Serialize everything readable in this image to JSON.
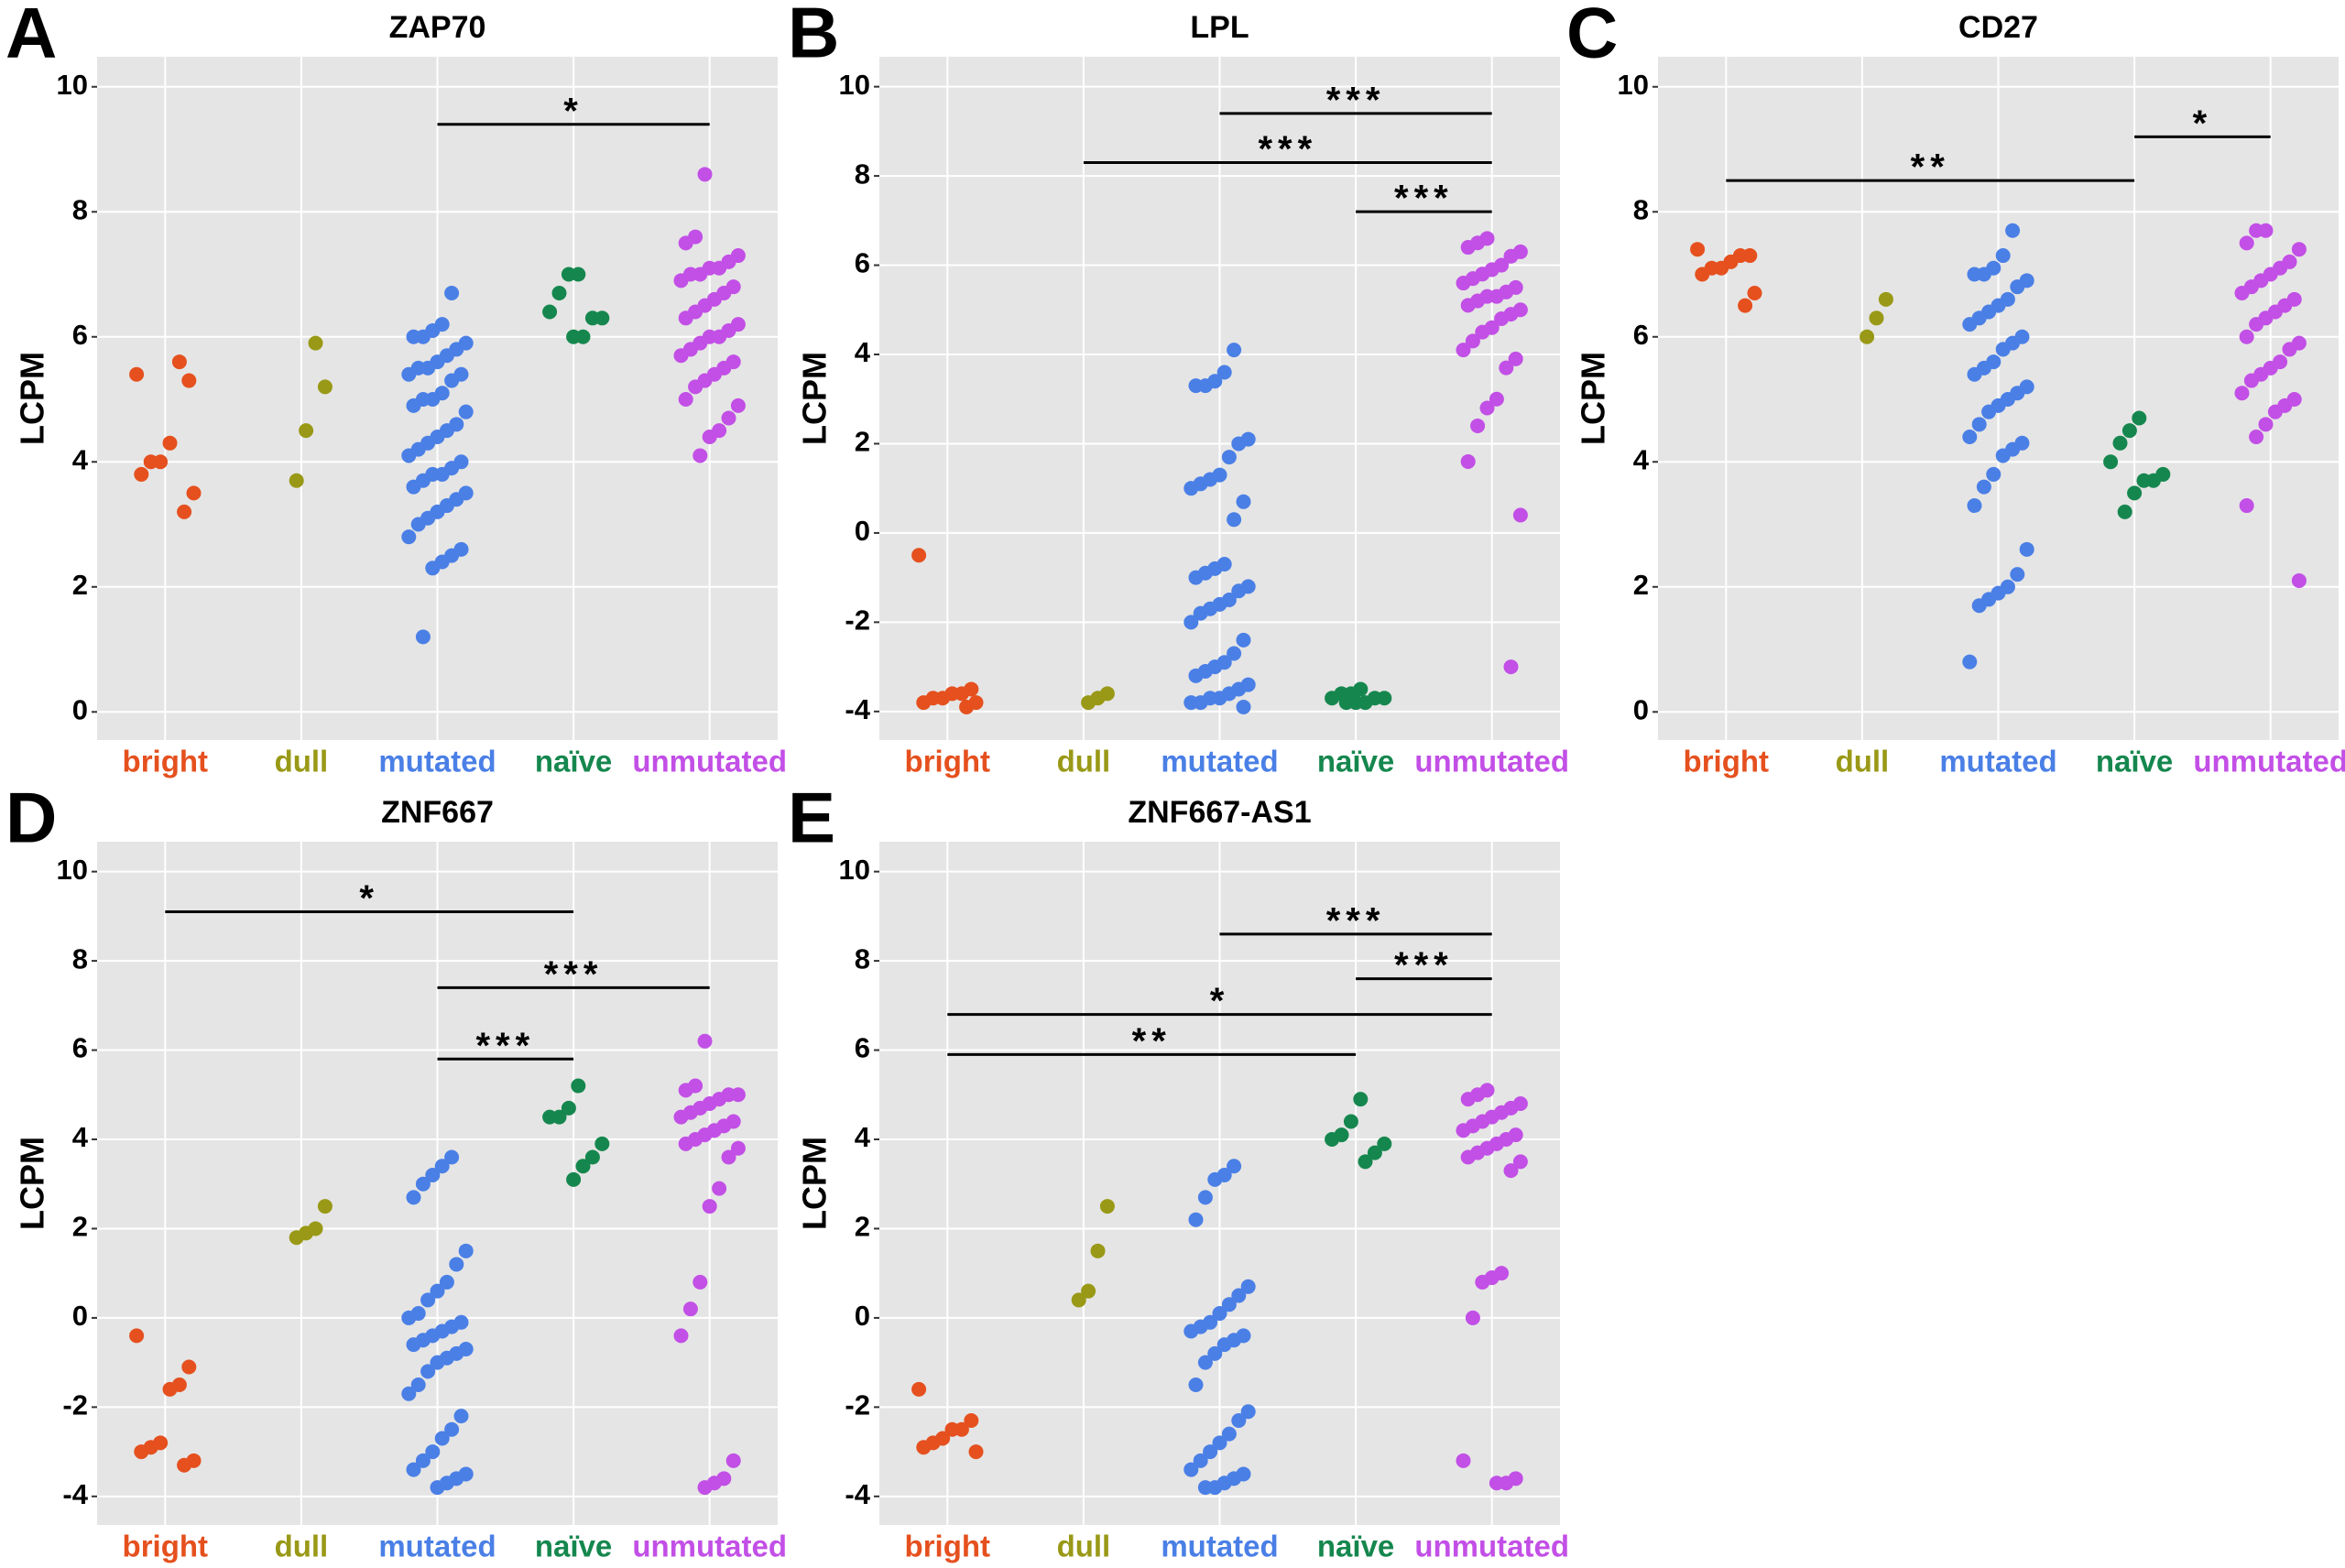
{
  "chart_data": [
    {
      "type": "strip",
      "panel": "A",
      "title": "ZAP70",
      "ylabel": "LCPM",
      "ylim": [
        -0.45,
        10.48
      ],
      "yticks": [
        0,
        2,
        4,
        6,
        8,
        10
      ],
      "grid": true,
      "series": [
        {
          "name": "bright",
          "color": "#e5501e",
          "values": [
            5.4,
            5.3,
            5.6,
            4.3,
            4.0,
            4.0,
            3.8,
            3.5,
            3.2
          ]
        },
        {
          "name": "dull",
          "color": "#999917",
          "values": [
            5.2,
            5.9,
            4.5,
            3.7
          ]
        },
        {
          "name": "mutated",
          "color": "#4a7fe6",
          "values": [
            6.7,
            6.2,
            6.1,
            6.0,
            6.0,
            5.9,
            5.8,
            5.7,
            5.6,
            5.5,
            5.5,
            5.4,
            5.4,
            5.3,
            5.1,
            5.0,
            5.0,
            4.9,
            4.8,
            4.6,
            4.5,
            4.4,
            4.3,
            4.2,
            4.1,
            4.0,
            3.9,
            3.8,
            3.8,
            3.7,
            3.6,
            3.5,
            3.4,
            3.3,
            3.2,
            3.1,
            3.0,
            2.8,
            2.6,
            2.5,
            2.4,
            2.3,
            1.2
          ]
        },
        {
          "name": "naïve",
          "color": "#15874e",
          "values": [
            7.0,
            7.0,
            6.7,
            6.4,
            6.3,
            6.3,
            6.0,
            6.0
          ]
        },
        {
          "name": "unmutated",
          "color": "#c24fe6",
          "values": [
            8.6,
            7.6,
            7.5,
            7.3,
            7.2,
            7.1,
            7.1,
            7.0,
            7.0,
            6.9,
            6.8,
            6.7,
            6.6,
            6.5,
            6.4,
            6.3,
            6.2,
            6.1,
            6.0,
            6.0,
            5.9,
            5.8,
            5.7,
            5.6,
            5.5,
            5.4,
            5.3,
            5.2,
            5.0,
            4.9,
            4.7,
            4.5,
            4.4,
            4.1
          ]
        }
      ],
      "annotations": [
        {
          "from": "mutated",
          "to": "unmutated",
          "y": 9.4,
          "label": "*"
        }
      ]
    },
    {
      "type": "strip",
      "panel": "B",
      "title": "LPL",
      "ylabel": "LCPM",
      "ylim": [
        -4.64,
        10.67
      ],
      "yticks": [
        -4,
        -2,
        0,
        2,
        4,
        6,
        8,
        10
      ],
      "grid": true,
      "series": [
        {
          "name": "bright",
          "color": "#e5501e",
          "values": [
            -0.5,
            -3.5,
            -3.6,
            -3.6,
            -3.7,
            -3.7,
            -3.8,
            -3.8,
            -3.9
          ]
        },
        {
          "name": "dull",
          "color": "#999917",
          "values": [
            -3.6,
            -3.7,
            -3.8
          ]
        },
        {
          "name": "mutated",
          "color": "#4a7fe6",
          "values": [
            4.1,
            3.6,
            3.4,
            3.3,
            3.3,
            2.1,
            2.0,
            1.7,
            1.3,
            1.2,
            1.1,
            1.0,
            0.7,
            0.3,
            -0.7,
            -0.8,
            -0.9,
            -1.0,
            -1.2,
            -1.3,
            -1.5,
            -1.6,
            -1.7,
            -1.8,
            -2.0,
            -2.4,
            -2.7,
            -2.9,
            -3.0,
            -3.1,
            -3.2,
            -3.4,
            -3.5,
            -3.6,
            -3.7,
            -3.7,
            -3.8,
            -3.8,
            -3.9
          ]
        },
        {
          "name": "naïve",
          "color": "#15874e",
          "values": [
            -3.5,
            -3.6,
            -3.6,
            -3.7,
            -3.7,
            -3.7,
            -3.8,
            -3.8,
            -3.8
          ]
        },
        {
          "name": "unmutated",
          "color": "#c24fe6",
          "values": [
            6.6,
            6.5,
            6.4,
            6.3,
            6.2,
            6.0,
            5.9,
            5.8,
            5.7,
            5.6,
            5.5,
            5.4,
            5.3,
            5.3,
            5.2,
            5.1,
            5.0,
            4.9,
            4.8,
            4.6,
            4.5,
            4.3,
            4.1,
            3.9,
            3.7,
            3.0,
            2.8,
            2.4,
            1.6,
            0.4,
            -3.0
          ]
        }
      ],
      "annotations": [
        {
          "from": "mutated",
          "to": "unmutated",
          "y": 9.4,
          "label": "***"
        },
        {
          "from": "dull",
          "to": "unmutated",
          "y": 8.3,
          "label": "***"
        },
        {
          "from": "naïve",
          "to": "unmutated",
          "y": 7.2,
          "label": "***"
        }
      ]
    },
    {
      "type": "strip",
      "panel": "C",
      "title": "CD27",
      "ylabel": "LCPM",
      "ylim": [
        -0.45,
        10.48
      ],
      "yticks": [
        0,
        2,
        4,
        6,
        8,
        10
      ],
      "grid": true,
      "series": [
        {
          "name": "bright",
          "color": "#e5501e",
          "values": [
            7.4,
            7.3,
            7.3,
            7.2,
            7.1,
            7.1,
            7.0,
            6.7,
            6.5
          ]
        },
        {
          "name": "dull",
          "color": "#999917",
          "values": [
            6.6,
            6.3,
            6.0
          ]
        },
        {
          "name": "mutated",
          "color": "#4a7fe6",
          "values": [
            7.7,
            7.3,
            7.1,
            7.0,
            7.0,
            6.9,
            6.8,
            6.6,
            6.5,
            6.4,
            6.3,
            6.2,
            6.0,
            5.9,
            5.8,
            5.6,
            5.5,
            5.4,
            5.2,
            5.1,
            5.0,
            4.9,
            4.8,
            4.6,
            4.4,
            4.3,
            4.2,
            4.1,
            3.8,
            3.6,
            3.3,
            2.6,
            2.2,
            2.0,
            1.9,
            1.8,
            1.7,
            0.8
          ]
        },
        {
          "name": "naïve",
          "color": "#15874e",
          "values": [
            4.7,
            4.5,
            4.3,
            4.0,
            3.8,
            3.7,
            3.7,
            3.5,
            3.2
          ]
        },
        {
          "name": "unmutated",
          "color": "#c24fe6",
          "values": [
            7.7,
            7.7,
            7.5,
            7.4,
            7.2,
            7.1,
            7.0,
            6.9,
            6.8,
            6.7,
            6.6,
            6.5,
            6.4,
            6.3,
            6.2,
            6.0,
            5.9,
            5.8,
            5.6,
            5.5,
            5.4,
            5.3,
            5.1,
            5.0,
            4.9,
            4.8,
            4.6,
            4.4,
            3.3,
            2.1
          ]
        }
      ],
      "annotations": [
        {
          "from": "bright",
          "to": "naïve",
          "y": 8.5,
          "label": "**"
        },
        {
          "from": "naïve",
          "to": "unmutated",
          "y": 9.2,
          "label": "*"
        }
      ]
    },
    {
      "type": "strip",
      "panel": "D",
      "title": "ZNF667",
      "ylabel": "LCPM",
      "ylim": [
        -4.64,
        10.67
      ],
      "yticks": [
        -4,
        -2,
        0,
        2,
        4,
        6,
        8,
        10
      ],
      "grid": true,
      "series": [
        {
          "name": "bright",
          "color": "#e5501e",
          "values": [
            -0.4,
            -1.1,
            -1.5,
            -1.6,
            -2.8,
            -2.9,
            -3.0,
            -3.2,
            -3.3
          ]
        },
        {
          "name": "dull",
          "color": "#999917",
          "values": [
            2.5,
            2.0,
            1.9,
            1.8
          ]
        },
        {
          "name": "mutated",
          "color": "#4a7fe6",
          "values": [
            3.6,
            3.4,
            3.2,
            3.0,
            2.7,
            1.5,
            1.2,
            0.8,
            0.6,
            0.4,
            0.1,
            0.0,
            -0.1,
            -0.2,
            -0.3,
            -0.4,
            -0.5,
            -0.6,
            -0.7,
            -0.8,
            -0.9,
            -1.0,
            -1.2,
            -1.5,
            -1.7,
            -2.2,
            -2.5,
            -2.7,
            -3.0,
            -3.2,
            -3.4,
            -3.5,
            -3.6,
            -3.7,
            -3.8
          ]
        },
        {
          "name": "naïve",
          "color": "#15874e",
          "values": [
            5.2,
            4.7,
            4.5,
            4.5,
            3.9,
            3.6,
            3.4,
            3.1
          ]
        },
        {
          "name": "unmutated",
          "color": "#c24fe6",
          "values": [
            6.2,
            5.2,
            5.1,
            5.0,
            5.0,
            4.9,
            4.8,
            4.7,
            4.6,
            4.5,
            4.4,
            4.3,
            4.2,
            4.1,
            4.0,
            3.9,
            3.8,
            3.6,
            2.9,
            2.5,
            0.8,
            0.2,
            -0.4,
            -3.2,
            -3.6,
            -3.7,
            -3.8
          ]
        }
      ],
      "annotations": [
        {
          "from": "bright",
          "to": "naïve",
          "y": 9.1,
          "label": "*"
        },
        {
          "from": "mutated",
          "to": "unmutated",
          "y": 7.4,
          "label": "***"
        },
        {
          "from": "mutated",
          "to": "naïve",
          "y": 5.8,
          "label": "***"
        }
      ]
    },
    {
      "type": "strip",
      "panel": "E",
      "title": "ZNF667-AS1",
      "ylabel": "LCPM",
      "ylim": [
        -4.64,
        10.67
      ],
      "yticks": [
        -4,
        -2,
        0,
        2,
        4,
        6,
        8,
        10
      ],
      "grid": true,
      "series": [
        {
          "name": "bright",
          "color": "#e5501e",
          "values": [
            -1.6,
            -2.3,
            -2.5,
            -2.5,
            -2.7,
            -2.8,
            -2.9,
            -3.0
          ]
        },
        {
          "name": "dull",
          "color": "#999917",
          "values": [
            2.5,
            1.5,
            0.6,
            0.4
          ]
        },
        {
          "name": "mutated",
          "color": "#4a7fe6",
          "values": [
            3.4,
            3.2,
            3.1,
            2.7,
            2.2,
            0.7,
            0.5,
            0.3,
            0.1,
            -0.1,
            -0.2,
            -0.3,
            -0.4,
            -0.5,
            -0.6,
            -0.8,
            -1.0,
            -1.5,
            -2.1,
            -2.3,
            -2.6,
            -2.8,
            -3.0,
            -3.2,
            -3.4,
            -3.5,
            -3.6,
            -3.7,
            -3.8,
            -3.8
          ]
        },
        {
          "name": "naïve",
          "color": "#15874e",
          "values": [
            4.9,
            4.4,
            4.1,
            4.0,
            3.9,
            3.7,
            3.5
          ]
        },
        {
          "name": "unmutated",
          "color": "#c24fe6",
          "values": [
            5.1,
            5.0,
            4.9,
            4.8,
            4.7,
            4.6,
            4.5,
            4.4,
            4.3,
            4.2,
            4.1,
            4.0,
            3.9,
            3.8,
            3.7,
            3.6,
            3.5,
            3.3,
            1.0,
            0.9,
            0.8,
            0.0,
            -3.2,
            -3.6,
            -3.7,
            -3.7
          ]
        }
      ],
      "annotations": [
        {
          "from": "mutated",
          "to": "unmutated",
          "y": 8.6,
          "label": "***"
        },
        {
          "from": "naïve",
          "to": "unmutated",
          "y": 7.6,
          "label": "***"
        },
        {
          "from": "bright",
          "to": "unmutated",
          "y": 6.8,
          "label": "*"
        },
        {
          "from": "bright",
          "to": "naïve",
          "y": 5.9,
          "label": "**"
        }
      ]
    }
  ]
}
